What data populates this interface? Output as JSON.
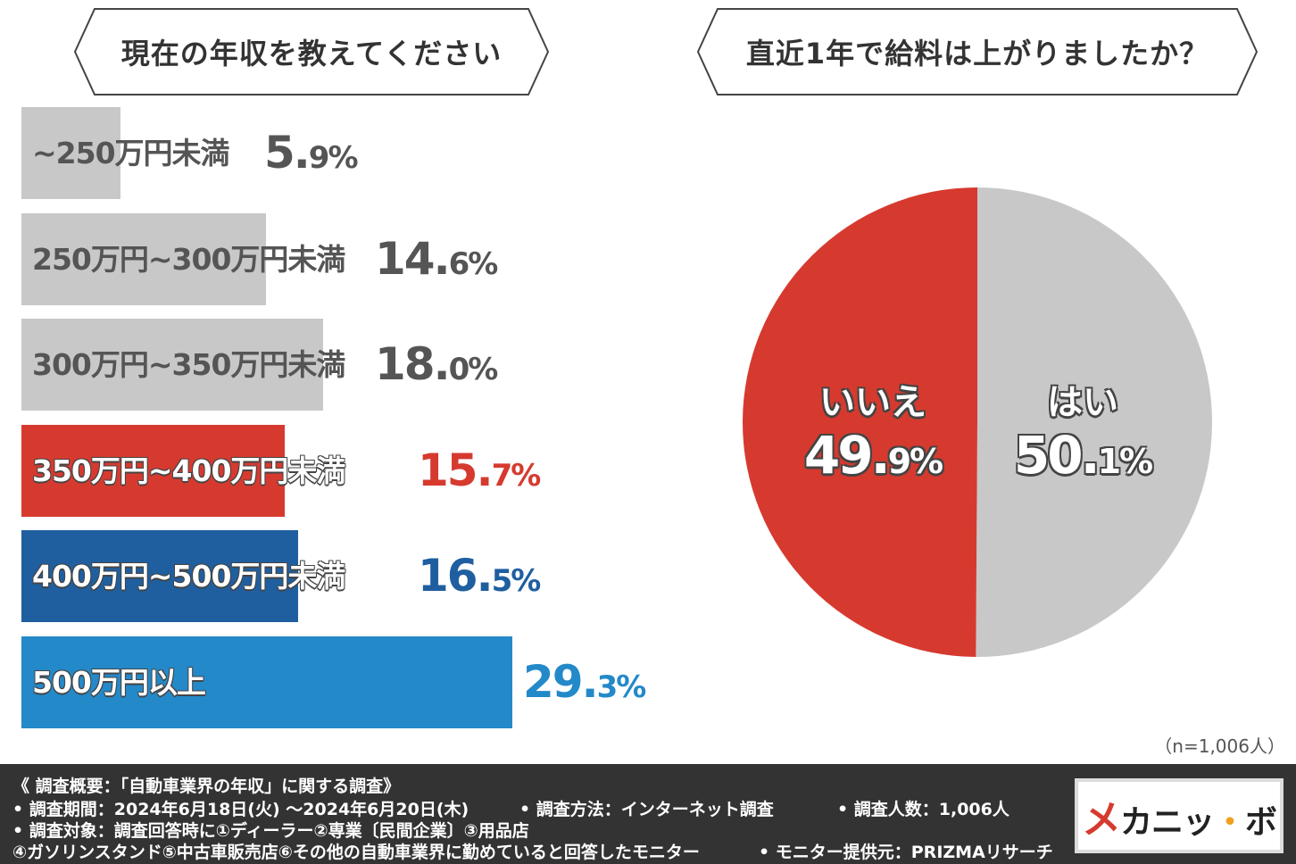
{
  "titles": {
    "left": "現在の年収を教えてください",
    "right": "直近1年で給料は上がりましたか？"
  },
  "chart_data": [
    {
      "type": "bar",
      "title": "現在の年収を教えてください",
      "categories": [
        "~250万円未満",
        "250万円~300万円未満",
        "300万円~350万円未満",
        "350万円~400万円未満",
        "400万円~500万円未満",
        "500万円以上"
      ],
      "values": [
        5.9,
        14.6,
        18.0,
        15.7,
        16.5,
        29.3
      ],
      "value_labels": [
        {
          "big": "5.",
          "small": "9%"
        },
        {
          "big": "14.",
          "small": "6%"
        },
        {
          "big": "18.",
          "small": "0%"
        },
        {
          "big": "15.",
          "small": "7%"
        },
        {
          "big": "16.",
          "small": "5%"
        },
        {
          "big": "29.",
          "small": "3%"
        }
      ],
      "colors": [
        "#c8c8c8",
        "#c8c8c8",
        "#c8c8c8",
        "#d63a2f",
        "#1f5fa0",
        "#2389c9"
      ],
      "value_colors": [
        "#555555",
        "#555555",
        "#555555",
        "#d63a2f",
        "#1f5fa0",
        "#2389c9"
      ],
      "label_styles": [
        "grey",
        "grey",
        "grey",
        "white",
        "white",
        "white"
      ],
      "orientation": "horizontal",
      "grid": false
    },
    {
      "type": "pie",
      "title": "直近1年で給料は上がりましたか？",
      "labels": [
        "はい",
        "いいえ"
      ],
      "values": [
        50.1,
        49.9
      ],
      "value_labels": [
        {
          "big": "50.",
          "small": "1%"
        },
        {
          "big": "49.",
          "small": "9%"
        }
      ],
      "colors": [
        "#c8c8c8",
        "#d63a2f"
      ]
    }
  ],
  "sample_note": "（n=1,006人）",
  "footer": {
    "line1": "《 調査概要：「自動車業界の年収」に関する調査》",
    "period": "• 調査期間：2024年6月18日(火) ～2024年6月20日(木)",
    "method": "• 調査方法：インターネット調査",
    "count": "• 調査人数：1,006人",
    "target": "• 調査対象：調査回答時に①ディーラー②専業〔民間企業〕③用品店",
    "target2": "④ガソリンスタンド⑤中古車販売店⑥その他の自動車業界に勤めていると回答したモニター",
    "provider": "• モニター提供元：PRIZMAリサーチ"
  },
  "logo": {
    "part1": "メ",
    "part2": "カニッ",
    "part3": "・",
    "part4": "ボ"
  }
}
